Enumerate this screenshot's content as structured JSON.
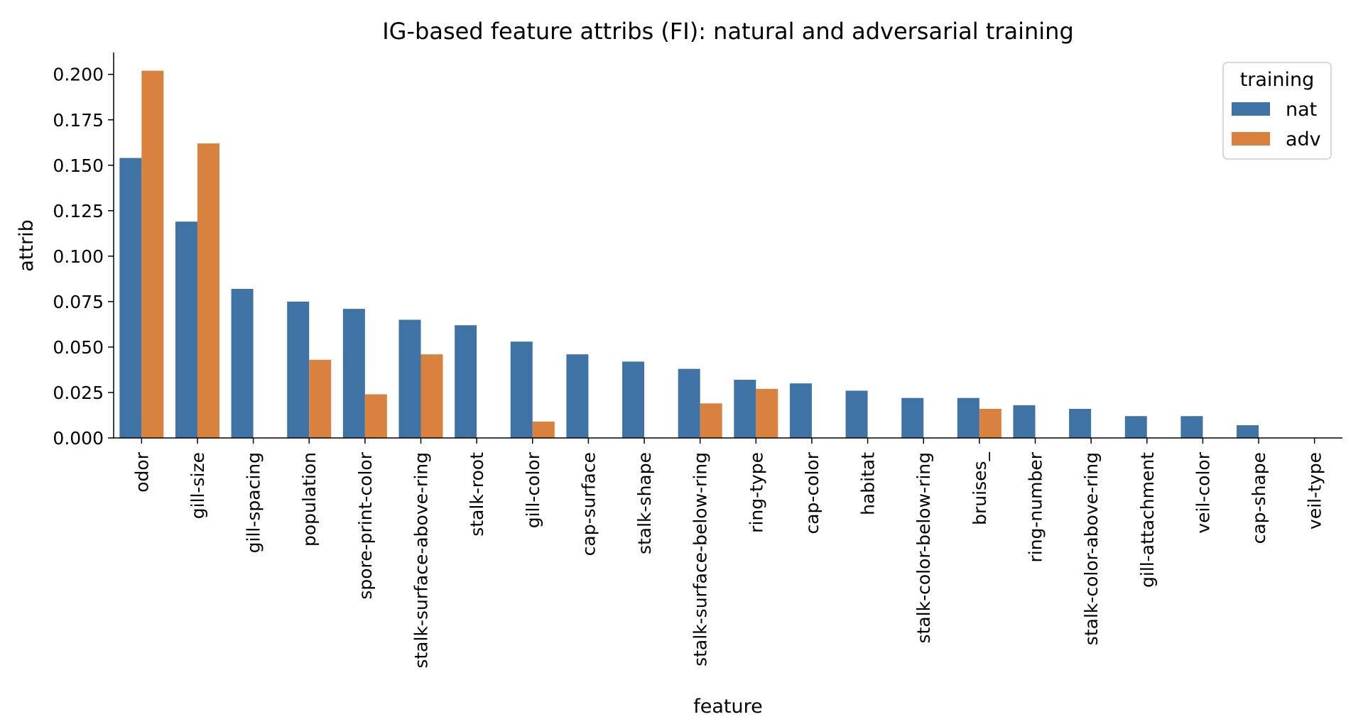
{
  "chart_data": {
    "type": "bar",
    "title": "IG-based feature attribs (FI): natural and adversarial training",
    "xlabel": "feature",
    "ylabel": "attrib",
    "ylim": [
      0,
      0.212
    ],
    "yticks": [
      0.0,
      0.025,
      0.05,
      0.075,
      0.1,
      0.125,
      0.15,
      0.175,
      0.2
    ],
    "ytick_labels": [
      "0.000",
      "0.025",
      "0.050",
      "0.075",
      "0.100",
      "0.125",
      "0.150",
      "0.175",
      "0.200"
    ],
    "grid": false,
    "legend": {
      "title": "training",
      "position": "top-right"
    },
    "categories": [
      "odor",
      "gill-size",
      "gill-spacing",
      "population",
      "spore-print-color",
      "stalk-surface-above-ring",
      "stalk-root",
      "gill-color",
      "cap-surface",
      "stalk-shape",
      "stalk-surface-below-ring",
      "ring-type",
      "cap-color",
      "habitat",
      "stalk-color-below-ring",
      "bruises_",
      "ring-number",
      "stalk-color-above-ring",
      "gill-attachment",
      "veil-color",
      "cap-shape",
      "veil-type"
    ],
    "series": [
      {
        "name": "nat",
        "color": "#3f72a5",
        "values": [
          0.154,
          0.119,
          0.082,
          0.075,
          0.071,
          0.065,
          0.062,
          0.053,
          0.046,
          0.042,
          0.038,
          0.032,
          0.03,
          0.026,
          0.022,
          0.022,
          0.018,
          0.016,
          0.012,
          0.012,
          0.007,
          0.0
        ]
      },
      {
        "name": "adv",
        "color": "#d98240",
        "values": [
          0.202,
          0.162,
          0.0,
          0.043,
          0.024,
          0.046,
          0.0,
          0.009,
          0.0,
          0.0,
          0.019,
          0.027,
          0.0,
          0.0,
          0.0,
          0.016,
          0.0,
          0.0,
          0.0,
          0.0,
          0.0,
          0.0
        ]
      }
    ]
  }
}
